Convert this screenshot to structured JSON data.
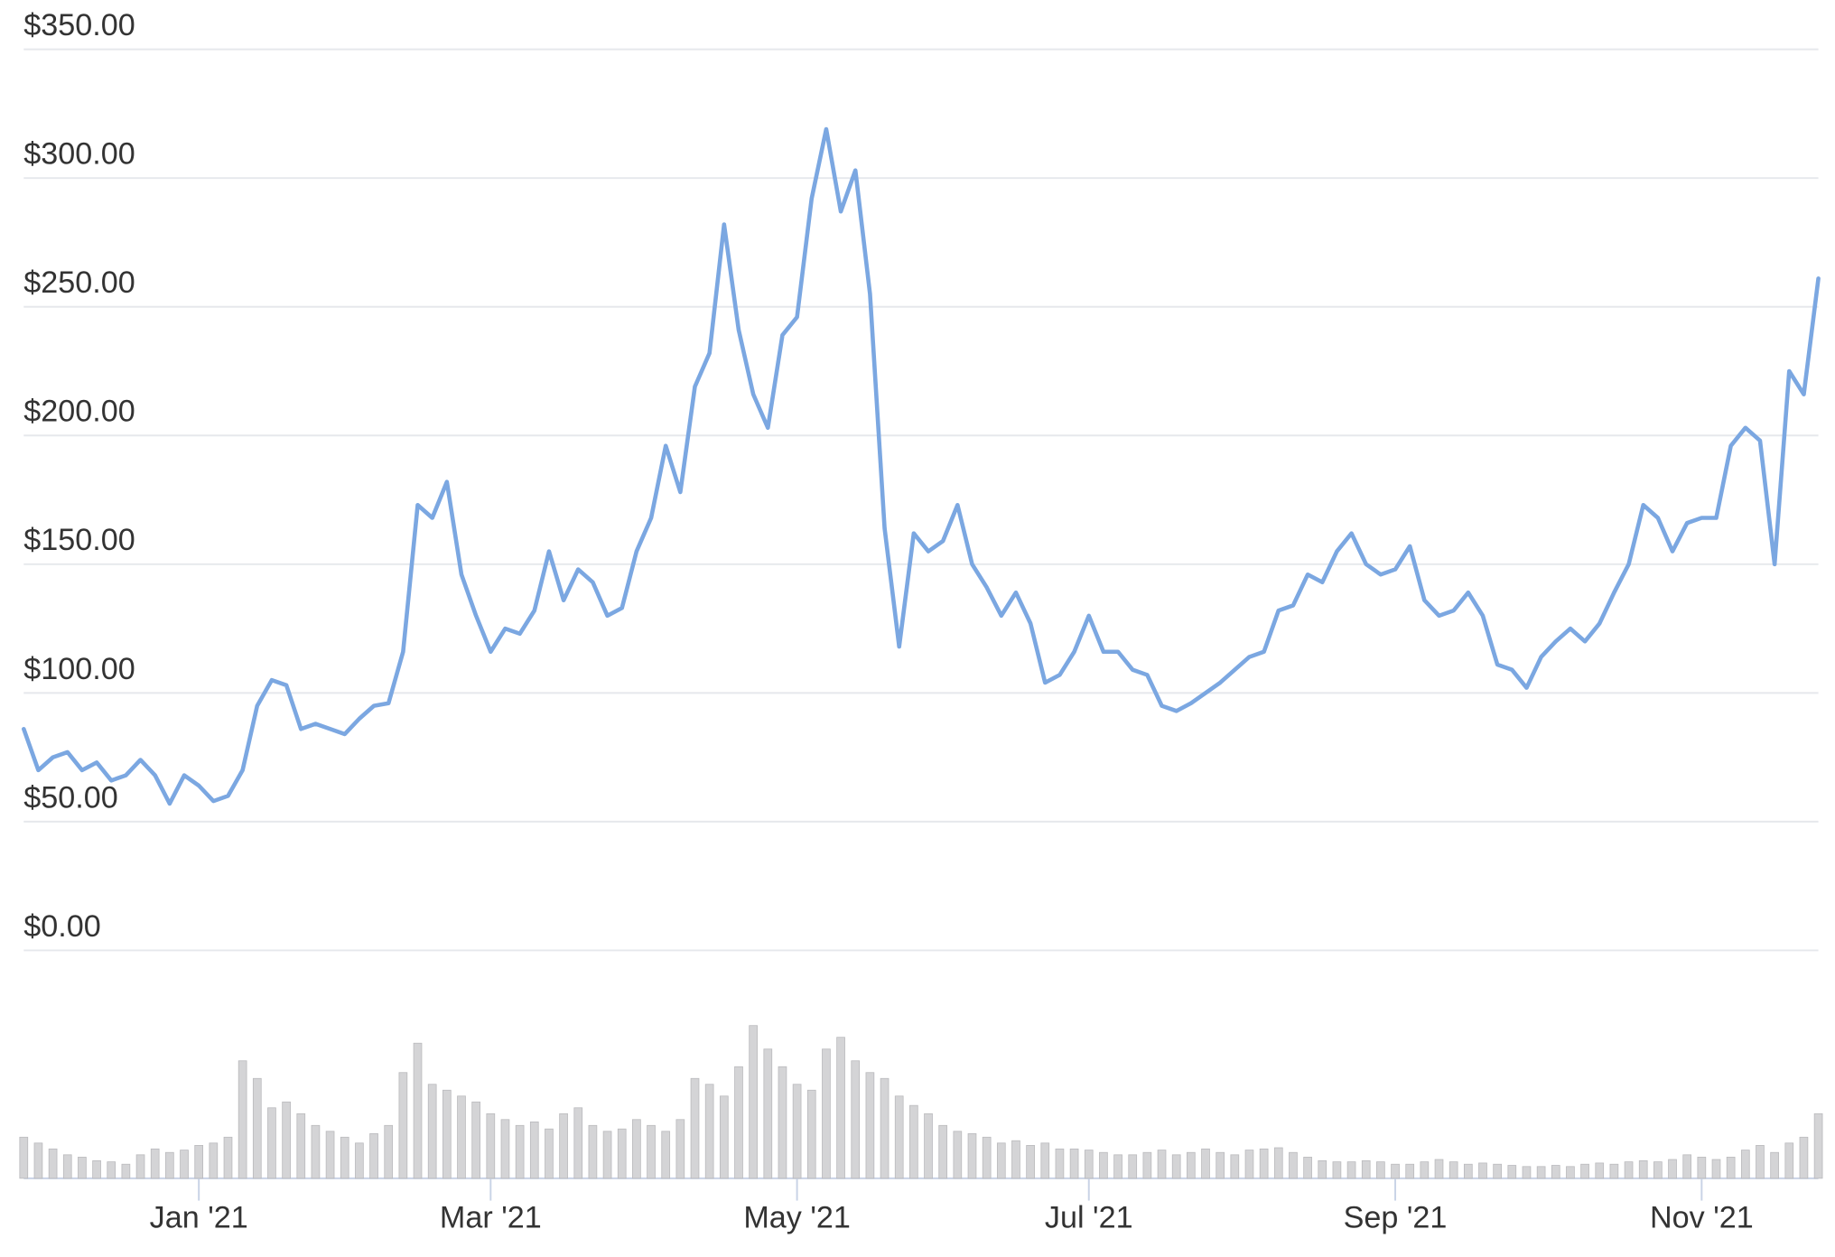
{
  "chart_data": [
    {
      "type": "line",
      "color": "#7ba7e1",
      "grid": true,
      "ylim": [
        0,
        350
      ],
      "yticks": [
        {
          "value": 0,
          "label": "$0.00"
        },
        {
          "value": 50,
          "label": "$50.00"
        },
        {
          "value": 100,
          "label": "$100.00"
        },
        {
          "value": 150,
          "label": "$150.00"
        },
        {
          "value": 200,
          "label": "$200.00"
        },
        {
          "value": 250,
          "label": "$250.00"
        },
        {
          "value": 300,
          "label": "$300.00"
        },
        {
          "value": 350,
          "label": "$350.00"
        }
      ],
      "categories": [
        null,
        null,
        null,
        null,
        null,
        null,
        null,
        null,
        null,
        null,
        null,
        null,
        "Jan '21",
        null,
        null,
        null,
        null,
        null,
        null,
        null,
        null,
        null,
        null,
        null,
        null,
        null,
        null,
        null,
        null,
        null,
        null,
        null,
        "Mar '21",
        null,
        null,
        null,
        null,
        null,
        null,
        null,
        null,
        null,
        null,
        null,
        null,
        null,
        null,
        null,
        null,
        null,
        null,
        null,
        null,
        "May '21",
        null,
        null,
        null,
        null,
        null,
        null,
        null,
        null,
        null,
        null,
        null,
        null,
        null,
        null,
        null,
        null,
        null,
        null,
        null,
        "Jul '21",
        null,
        null,
        null,
        null,
        null,
        null,
        null,
        null,
        null,
        null,
        null,
        null,
        null,
        null,
        null,
        null,
        null,
        null,
        null,
        null,
        "Sep '21",
        null,
        null,
        null,
        null,
        null,
        null,
        null,
        null,
        null,
        null,
        null,
        null,
        null,
        null,
        null,
        null,
        null,
        null,
        null,
        null,
        "Nov '21",
        null,
        null,
        null,
        null,
        null,
        null,
        null,
        null
      ],
      "values": [
        86,
        70,
        75,
        77,
        70,
        73,
        66,
        68,
        74,
        68,
        57,
        68,
        64,
        58,
        60,
        70,
        95,
        105,
        103,
        86,
        88,
        86,
        84,
        90,
        95,
        96,
        116,
        173,
        168,
        182,
        146,
        130,
        116,
        125,
        123,
        132,
        155,
        136,
        148,
        143,
        130,
        133,
        155,
        168,
        196,
        178,
        219,
        232,
        282,
        241,
        216,
        203,
        239,
        246,
        292,
        319,
        287,
        303,
        255,
        164,
        118,
        162,
        155,
        159,
        173,
        150,
        141,
        130,
        139,
        127,
        104,
        107,
        116,
        130,
        116,
        116,
        109,
        107,
        95,
        93,
        96,
        100,
        104,
        109,
        114,
        116,
        132,
        134,
        146,
        143,
        155,
        162,
        150,
        146,
        148,
        157,
        136,
        130,
        132,
        139,
        130,
        111,
        109,
        102,
        114,
        120,
        125,
        120,
        127,
        139,
        150,
        173,
        168,
        155,
        166,
        168,
        168,
        196,
        203,
        198,
        150,
        225,
        216,
        261
      ]
    },
    {
      "type": "bar",
      "color": "#d4d4d6",
      "ylim": [
        0,
        150
      ],
      "values": [
        35,
        30,
        25,
        20,
        18,
        15,
        14,
        12,
        20,
        25,
        22,
        24,
        28,
        30,
        35,
        100,
        85,
        60,
        65,
        55,
        45,
        40,
        35,
        30,
        38,
        45,
        90,
        115,
        80,
        75,
        70,
        65,
        55,
        50,
        45,
        48,
        42,
        55,
        60,
        45,
        40,
        42,
        50,
        45,
        40,
        50,
        85,
        80,
        70,
        95,
        130,
        110,
        95,
        80,
        75,
        110,
        120,
        100,
        90,
        85,
        70,
        62,
        55,
        45,
        40,
        38,
        35,
        30,
        32,
        28,
        30,
        25,
        25,
        24,
        22,
        20,
        20,
        22,
        24,
        20,
        22,
        25,
        22,
        20,
        24,
        25,
        26,
        22,
        18,
        15,
        14,
        14,
        15,
        14,
        12,
        12,
        14,
        16,
        14,
        12,
        13,
        12,
        11,
        10,
        10,
        11,
        10,
        12,
        13,
        12,
        14,
        15,
        14,
        16,
        20,
        18,
        16,
        18,
        24,
        28,
        22,
        30,
        35,
        55
      ]
    }
  ]
}
